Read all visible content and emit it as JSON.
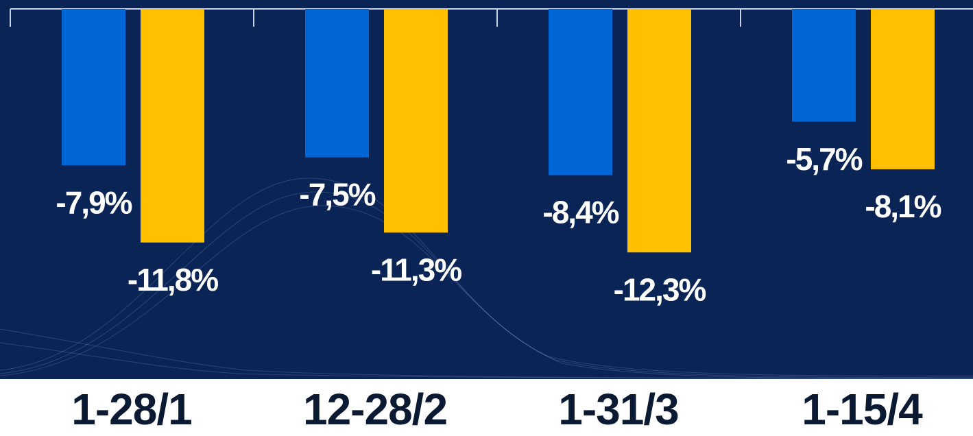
{
  "chart_data": {
    "type": "bar",
    "categories": [
      "1-28/1",
      "12-28/2",
      "1-31/3",
      "1-15/4"
    ],
    "series": [
      {
        "color": "#0066d6",
        "values": [
          -7.9,
          -7.5,
          -8.4,
          -5.7
        ],
        "value_labels": [
          "-7,9%",
          "-7,5%",
          "-8,4%",
          "-5,7%"
        ]
      },
      {
        "color": "#ffc000",
        "values": [
          -11.8,
          -11.3,
          -12.3,
          -8.1
        ],
        "value_labels": [
          "-11,8%",
          "-11,3%",
          "-12,3%",
          "-8,1%"
        ]
      }
    ],
    "ylim": [
      -18.7,
      0
    ]
  }
}
